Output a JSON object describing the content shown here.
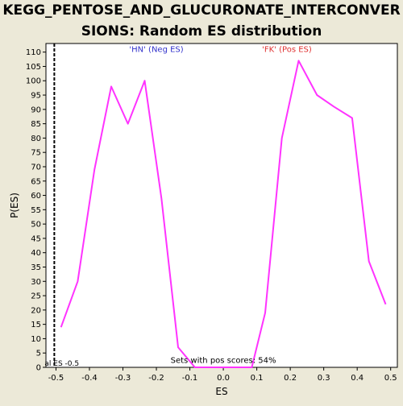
{
  "chart_data": {
    "type": "line",
    "title_line1": "KEGG_PENTOSE_AND_GLUCURONATE_INTERCONVER",
    "title_line2": "SIONS: Random ES distribution",
    "xlabel": "ES",
    "ylabel": "P(ES)",
    "xlim": [
      -0.53,
      0.52
    ],
    "ylim": [
      0,
      113
    ],
    "x_ticks": [
      -0.5,
      -0.4,
      -0.3,
      -0.2,
      -0.1,
      0.0,
      0.1,
      0.2,
      0.3,
      0.4,
      0.5
    ],
    "x_tick_labels": [
      "-0.5",
      "-0.4",
      "-0.3",
      "-0.2",
      "-0.1",
      "0.0",
      "0.1",
      "0.2",
      "0.3",
      "0.4",
      "0.5"
    ],
    "y_ticks": [
      0,
      5,
      10,
      15,
      20,
      25,
      30,
      35,
      40,
      45,
      50,
      55,
      60,
      65,
      70,
      75,
      80,
      85,
      90,
      95,
      100,
      105,
      110
    ],
    "y_tick_labels": [
      "0",
      "5",
      "10",
      "15",
      "20",
      "25",
      "30",
      "35",
      "40",
      "45",
      "50",
      "55",
      "60",
      "65",
      "70",
      "75",
      "80",
      "85",
      "90",
      "95",
      "100",
      "105",
      "110"
    ],
    "grid": false,
    "series": [
      {
        "color": "#ff33ff",
        "x": [
          -0.485,
          -0.435,
          -0.385,
          -0.335,
          -0.285,
          -0.235,
          -0.185,
          -0.135,
          -0.085,
          0.085,
          0.125,
          0.175,
          0.225,
          0.28,
          0.33,
          0.385,
          0.435,
          0.485
        ],
        "y": [
          14,
          30,
          69,
          98,
          85,
          100,
          59,
          7,
          0,
          0,
          19,
          80,
          107,
          95,
          91,
          87,
          37,
          22
        ]
      }
    ],
    "actual_es_line": {
      "x": -0.505,
      "label": "al ES -0.5",
      "color": "#000000"
    },
    "annotations": [
      {
        "text": "'HN' (Neg ES)",
        "x": -0.2,
        "y": 110,
        "color": "#3333cc"
      },
      {
        "text": "'FK' (Pos ES)",
        "x": 0.19,
        "y": 110,
        "color": "#e03030"
      },
      {
        "text": "Sets with pos scores: 54%",
        "x": 0.0,
        "y": 1.5,
        "color": "#000000"
      }
    ],
    "colors": {
      "background": "#ece9d8",
      "plot_background": "#ffffff",
      "axis": "#000000"
    }
  }
}
